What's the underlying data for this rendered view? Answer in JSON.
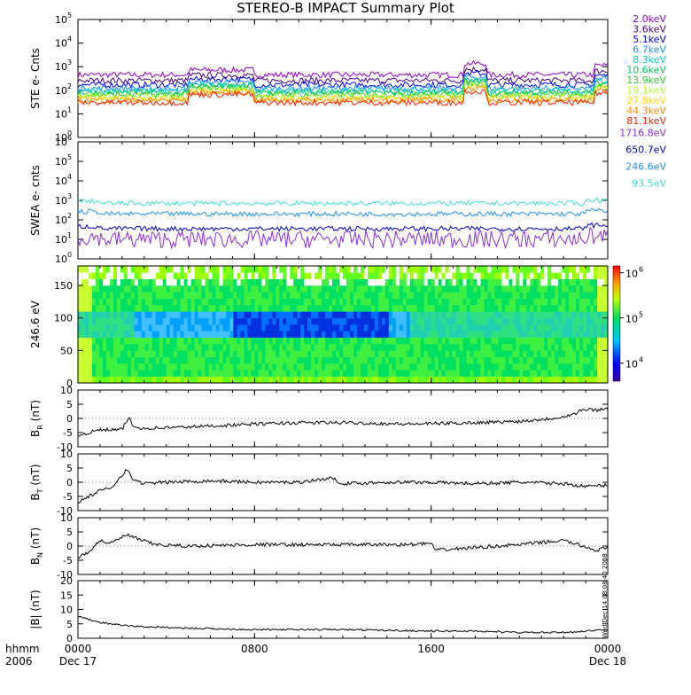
{
  "title": "STEREO-B IMPACT Summary Plot",
  "stamp": "Wed Dec 14 08:08:40 2008",
  "colors": {
    "axis": "#000000",
    "trace": "#000000",
    "background": "#ffffff"
  },
  "time_axis": {
    "row1_label": "hhmm",
    "row2_label": "2006",
    "ticks": [
      {
        "hour": 0,
        "label": "0000",
        "date": "Dec 17"
      },
      {
        "hour": 8,
        "label": "0800",
        "date": ""
      },
      {
        "hour": 16,
        "label": "1600",
        "date": ""
      },
      {
        "hour": 24,
        "label": "0000",
        "date": "Dec 18"
      }
    ],
    "range_hours": [
      0,
      24
    ]
  },
  "chart_data": [
    {
      "type": "line",
      "panel": "ste",
      "ylabel": "STE e- Cnts",
      "yscale": "log",
      "ylim_exp": [
        0,
        5
      ],
      "ytick_exps": [
        0,
        1,
        2,
        3,
        4,
        5
      ],
      "series": [
        {
          "name": "2.0keV",
          "color": "#9400d3",
          "level": 450
        },
        {
          "name": "3.6keV",
          "color": "#4b0082",
          "level": 260
        },
        {
          "name": "5.1keV",
          "color": "#0000ff",
          "level": 170
        },
        {
          "name": "6.7keV",
          "color": "#1e90ff",
          "level": 120
        },
        {
          "name": "8.3keV",
          "color": "#00ced1",
          "level": 95
        },
        {
          "name": "10.6keV",
          "color": "#00c957",
          "level": 80
        },
        {
          "name": "13.9keV",
          "color": "#32cd32",
          "level": 65
        },
        {
          "name": "19.1keV",
          "color": "#adff2f",
          "level": 55
        },
        {
          "name": "27.8keV",
          "color": "#ffd700",
          "level": 45
        },
        {
          "name": "44.3keV",
          "color": "#ff8c00",
          "level": 38
        },
        {
          "name": "81.1keV",
          "color": "#ff2000",
          "level": 30
        }
      ]
    },
    {
      "type": "line",
      "panel": "swea",
      "ylabel": "SWEA e- cnts",
      "yscale": "log",
      "ylim_exp": [
        0,
        6
      ],
      "ytick_exps": [
        0,
        1,
        2,
        3,
        4,
        5,
        6
      ],
      "series": [
        {
          "name": "1716.8eV",
          "color": "#8a2be2",
          "level": 10
        },
        {
          "name": "650.7eV",
          "color": "#0000cd",
          "level": 35
        },
        {
          "name": "246.6eV",
          "color": "#1e90ff",
          "level": 200
        },
        {
          "name": "93.5eV",
          "color": "#40e0d0",
          "level": 700
        }
      ]
    },
    {
      "type": "heatmap",
      "panel": "pad",
      "ylabel": "246.6 eV",
      "ylim": [
        0,
        180
      ],
      "yticks": [
        0,
        50,
        100,
        150
      ],
      "colorbar": {
        "scale": "log",
        "ticks": [
          {
            "exp": 4,
            "label": "10"
          },
          {
            "exp": 5,
            "label": "10"
          },
          {
            "exp": 6,
            "label": "10"
          }
        ],
        "tick_exps": [
          "4",
          "5",
          "6"
        ]
      }
    },
    {
      "type": "line",
      "panel": "br",
      "ylabel_main": "B",
      "ylabel_sub": "R",
      "ylabel_unit": "(nT)",
      "ylim": [
        -10,
        10
      ],
      "yticks": [
        -10,
        -5,
        0,
        5,
        10
      ],
      "x": [
        0,
        0.5,
        1,
        2,
        2.3,
        2.5,
        3,
        5,
        8,
        10,
        12,
        15,
        18,
        20,
        21.5,
        22.5,
        22.8,
        23.5,
        24
      ],
      "y": [
        -6,
        -5,
        -4,
        -4,
        0.5,
        -3,
        -3.5,
        -3,
        -2,
        -1.5,
        -1.5,
        -2,
        -1.5,
        -1,
        0,
        1.5,
        3,
        3,
        3.5
      ]
    },
    {
      "type": "line",
      "panel": "bt",
      "ylabel_main": "B",
      "ylabel_sub": "T",
      "ylabel_unit": "(nT)",
      "ylim": [
        -10,
        10
      ],
      "yticks": [
        -10,
        -5,
        0,
        5,
        10
      ],
      "x": [
        0,
        0.5,
        1,
        1.5,
        2.2,
        2.5,
        3,
        4,
        6,
        8,
        10,
        11.5,
        12,
        14,
        16,
        18,
        20,
        22,
        23,
        24
      ],
      "y": [
        -7,
        -5,
        -3,
        -2,
        4.5,
        1,
        -0.5,
        0,
        0.5,
        0,
        0,
        1.5,
        -0.5,
        0,
        0,
        -0.5,
        0,
        -0.5,
        -1.5,
        -1
      ]
    },
    {
      "type": "line",
      "panel": "bn",
      "ylabel_main": "B",
      "ylabel_sub": "N",
      "ylabel_unit": "(nT)",
      "ylim": [
        -10,
        10
      ],
      "yticks": [
        -10,
        -5,
        0,
        5,
        10
      ],
      "x": [
        0,
        0.5,
        1,
        1.5,
        2.2,
        2.7,
        3.5,
        5,
        8,
        12,
        15,
        16,
        16.2,
        18,
        20,
        22,
        23.5,
        24
      ],
      "y": [
        -4,
        -2,
        2,
        1,
        4,
        2.5,
        0.5,
        0,
        0.5,
        0.5,
        0.5,
        1,
        -1.5,
        -0.5,
        0.5,
        2,
        -1.5,
        -0.5
      ]
    },
    {
      "type": "line",
      "panel": "bmag",
      "ylabel": "|B| (nT)",
      "ylim": [
        0,
        20
      ],
      "yticks": [
        0,
        5,
        10,
        15,
        20
      ],
      "x": [
        0,
        0.5,
        1,
        2,
        3,
        5,
        8,
        12,
        16,
        18,
        20,
        22,
        23,
        24
      ],
      "y": [
        7.5,
        6.5,
        5.5,
        4.5,
        4,
        3.5,
        3,
        3,
        2.5,
        2.5,
        2,
        2,
        2.5,
        3
      ]
    }
  ]
}
